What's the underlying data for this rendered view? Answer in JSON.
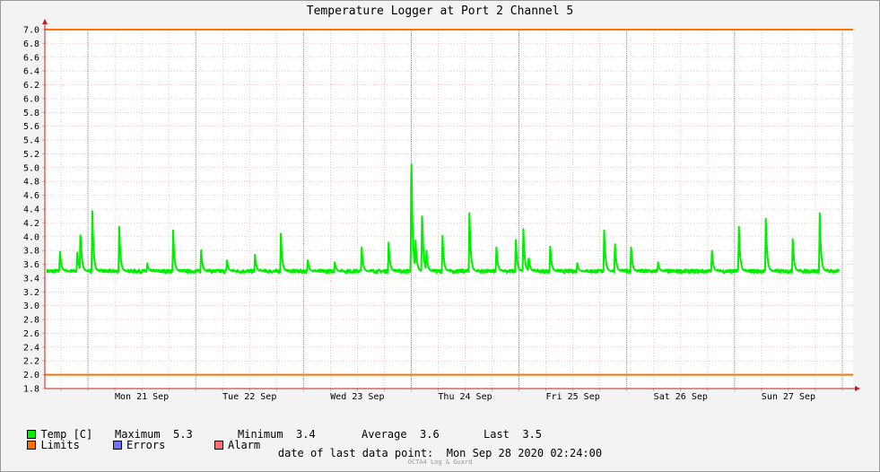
{
  "chart_data": {
    "type": "line",
    "title": "Temperature Logger at Port 2 Channel 5",
    "ylim": [
      1.8,
      7.0
    ],
    "yticks": [
      "7.0",
      "6.8",
      "6.6",
      "6.4",
      "6.2",
      "6.0",
      "5.8",
      "5.6",
      "5.4",
      "5.2",
      "5.0",
      "4.8",
      "4.6",
      "4.4",
      "4.2",
      "4.0",
      "3.8",
      "3.6",
      "3.4",
      "3.2",
      "3.0",
      "2.8",
      "2.6",
      "2.4",
      "2.2",
      "2.0",
      "1.8"
    ],
    "x_range_days": [
      20.6,
      28.1
    ],
    "x_labels": [
      {
        "day": 21.0,
        "label": "Mon 21 Sep"
      },
      {
        "day": 22.0,
        "label": "Tue 22 Sep"
      },
      {
        "day": 23.0,
        "label": "Wed 23 Sep"
      },
      {
        "day": 24.0,
        "label": "Thu 24 Sep"
      },
      {
        "day": 25.0,
        "label": "Fri 25 Sep"
      },
      {
        "day": 26.0,
        "label": "Sat 26 Sep"
      },
      {
        "day": 27.0,
        "label": "Sun 27 Sep"
      }
    ],
    "limits": [
      2.0,
      7.0
    ],
    "series": [
      {
        "name": "Temp [C]",
        "color": "#00ee00",
        "baseline": 3.5,
        "peaks": [
          {
            "day": 20.74,
            "value": 3.82
          },
          {
            "day": 20.9,
            "value": 3.8
          },
          {
            "day": 20.93,
            "value": 4.12
          },
          {
            "day": 21.04,
            "value": 4.38
          },
          {
            "day": 21.29,
            "value": 4.15
          },
          {
            "day": 21.55,
            "value": 3.62
          },
          {
            "day": 21.79,
            "value": 4.1
          },
          {
            "day": 22.05,
            "value": 3.82
          },
          {
            "day": 22.29,
            "value": 3.66
          },
          {
            "day": 22.55,
            "value": 3.75
          },
          {
            "day": 22.79,
            "value": 4.05
          },
          {
            "day": 23.04,
            "value": 3.66
          },
          {
            "day": 23.29,
            "value": 3.63
          },
          {
            "day": 23.54,
            "value": 3.85
          },
          {
            "day": 23.79,
            "value": 3.92
          },
          {
            "day": 24.0,
            "value": 5.32
          },
          {
            "day": 24.04,
            "value": 3.95
          },
          {
            "day": 24.1,
            "value": 4.42
          },
          {
            "day": 24.14,
            "value": 3.82
          },
          {
            "day": 24.29,
            "value": 4.02
          },
          {
            "day": 24.54,
            "value": 4.35
          },
          {
            "day": 24.79,
            "value": 3.85
          },
          {
            "day": 24.97,
            "value": 3.98
          },
          {
            "day": 25.04,
            "value": 4.12
          },
          {
            "day": 25.09,
            "value": 3.72
          },
          {
            "day": 25.29,
            "value": 3.86
          },
          {
            "day": 25.54,
            "value": 3.62
          },
          {
            "day": 25.79,
            "value": 4.1
          },
          {
            "day": 25.89,
            "value": 3.92
          },
          {
            "day": 26.04,
            "value": 3.85
          },
          {
            "day": 26.29,
            "value": 3.63
          },
          {
            "day": 26.79,
            "value": 3.8
          },
          {
            "day": 27.04,
            "value": 4.15
          },
          {
            "day": 27.29,
            "value": 4.27
          },
          {
            "day": 27.54,
            "value": 3.97
          },
          {
            "day": 27.79,
            "value": 4.35
          }
        ]
      }
    ],
    "stats": [
      {
        "label": "Maximum",
        "value": "5.3"
      },
      {
        "label": "Minimum",
        "value": "3.4"
      },
      {
        "label": "Average",
        "value": "3.6"
      },
      {
        "label": "Last",
        "value": "3.5"
      }
    ],
    "legend": [
      {
        "name": "Limits",
        "color": "#ff7000"
      },
      {
        "name": "Errors",
        "color": "#7070ff"
      },
      {
        "name": "Alarm",
        "color": "#ff7070"
      }
    ]
  },
  "footer": {
    "last_data_label": "date of last data point:",
    "last_data_value": "Mon Sep 28 2020 02:24:00",
    "brand": "OCTA4 Log & Guard"
  }
}
